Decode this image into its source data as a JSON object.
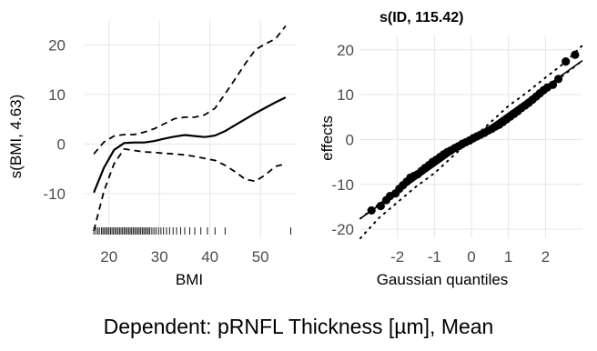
{
  "caption": "Dependent: pRNFL Thickness [µm], Mean",
  "chart_data": [
    {
      "type": "line",
      "title": "",
      "xlabel": "BMI",
      "ylabel": "s(BMI, 4.63)",
      "xlim": [
        15,
        57
      ],
      "ylim": [
        -19,
        25
      ],
      "xticks": [
        20,
        30,
        40,
        50
      ],
      "yticks": [
        -10,
        0,
        10,
        20
      ],
      "grid": true,
      "series": [
        {
          "name": "",
          "style": "solid",
          "x": [
            17,
            19,
            21,
            23,
            25,
            27,
            29,
            31,
            33,
            35,
            37,
            39,
            41,
            43,
            45,
            47,
            49,
            51,
            53,
            55
          ],
          "y": [
            -9.8,
            -4.8,
            -1.2,
            0.2,
            0.3,
            0.3,
            0.6,
            1.1,
            1.5,
            1.8,
            1.6,
            1.4,
            1.7,
            2.6,
            3.8,
            5.0,
            6.2,
            7.3,
            8.4,
            9.4
          ]
        },
        {
          "name": "",
          "style": "dashed",
          "x": [
            17,
            19,
            21,
            23,
            25,
            27,
            29,
            31,
            33,
            35,
            37,
            39,
            41,
            43,
            45,
            47,
            49,
            51,
            53,
            55
          ],
          "y": [
            -2.0,
            0.4,
            1.6,
            1.9,
            1.9,
            2.4,
            3.1,
            4.1,
            5.1,
            5.4,
            5.4,
            5.9,
            7.2,
            10.1,
            13.1,
            16.2,
            19.0,
            20.2,
            21.2,
            23.8
          ]
        },
        {
          "name": "",
          "style": "dashed",
          "x": [
            17,
            19,
            21,
            23,
            25,
            27,
            29,
            31,
            33,
            35,
            37,
            39,
            41,
            43,
            45,
            47,
            49,
            51,
            53,
            55
          ],
          "y": [
            -17.5,
            -9.5,
            -4.0,
            -1.0,
            -1.3,
            -1.6,
            -1.7,
            -1.9,
            -2.0,
            -2.2,
            -2.5,
            -2.9,
            -3.3,
            -4.3,
            -5.6,
            -7.1,
            -7.5,
            -6.2,
            -4.5,
            -4.0
          ]
        }
      ],
      "rug": [
        17.0,
        17.4,
        17.8,
        18.1,
        18.5,
        18.8,
        19.1,
        19.4,
        19.7,
        20.0,
        20.3,
        20.6,
        20.9,
        21.2,
        21.5,
        21.8,
        22.1,
        22.4,
        22.7,
        23.0,
        23.3,
        23.6,
        23.9,
        24.2,
        24.5,
        24.8,
        25.1,
        25.4,
        25.7,
        26.0,
        26.3,
        26.6,
        26.9,
        27.2,
        27.5,
        27.8,
        28.1,
        28.5,
        28.9,
        29.3,
        29.8,
        30.3,
        30.8,
        31.4,
        32.0,
        32.7,
        33.4,
        34.2,
        35.0,
        36.0,
        37.0,
        38.2,
        39.5,
        41.0,
        43.0,
        56.0
      ]
    },
    {
      "type": "scatter",
      "title": "s(ID, 115.42)",
      "xlabel": "Gaussian quantiles",
      "ylabel": "effects",
      "xlim": [
        -3.0,
        3.0
      ],
      "ylim": [
        -22,
        23
      ],
      "xticks": [
        -2,
        -1,
        0,
        1,
        2
      ],
      "yticks": [
        -20,
        -10,
        0,
        10,
        20
      ],
      "grid": true,
      "reference_line": {
        "x": [
          -3.0,
          3.0
        ],
        "y": [
          -17.6,
          17.6
        ]
      },
      "confidence_band": {
        "lower": {
          "x": [
            -3.0,
            -2.5,
            -2.0,
            -1.5,
            -1.0,
            -0.5,
            0.0,
            0.5,
            1.0,
            1.5,
            2.0,
            2.5,
            3.0
          ],
          "y": [
            -22.0,
            -17.5,
            -14.0,
            -10.5,
            -7.5,
            -3.7,
            0.0,
            2.7,
            5.5,
            8.4,
            11.6,
            14.4,
            17.6
          ]
        },
        "upper": {
          "x": [
            -3.0,
            -2.5,
            -2.0,
            -1.5,
            -1.0,
            -0.5,
            0.0,
            0.5,
            1.0,
            1.5,
            2.0,
            2.5,
            3.0
          ],
          "y": [
            -17.6,
            -14.4,
            -11.6,
            -8.4,
            -5.5,
            -2.7,
            0.0,
            3.7,
            7.5,
            10.5,
            13.8,
            17.0,
            21.0
          ]
        }
      },
      "points": {
        "x": [
          -2.7,
          -2.45,
          -2.3,
          -2.2,
          -2.05,
          -1.95,
          -1.85,
          -1.75,
          -1.65,
          -1.55,
          -1.45,
          -1.35,
          -1.25,
          -1.15,
          -1.05,
          -0.95,
          -0.85,
          -0.75,
          -0.65,
          -0.55,
          -0.45,
          -0.35,
          -0.25,
          -0.15,
          -0.05,
          0.05,
          0.15,
          0.25,
          0.35,
          0.45,
          0.55,
          0.65,
          0.75,
          0.85,
          0.95,
          1.05,
          1.15,
          1.25,
          1.35,
          1.45,
          1.55,
          1.65,
          1.75,
          1.85,
          1.95,
          2.05,
          2.2,
          2.35,
          2.55,
          2.8
        ],
        "y": [
          -15.8,
          -14.8,
          -13.5,
          -12.6,
          -12.0,
          -11.0,
          -10.2,
          -9.4,
          -8.5,
          -8.1,
          -7.7,
          -7.0,
          -6.3,
          -5.7,
          -5.0,
          -4.5,
          -3.9,
          -3.3,
          -2.8,
          -2.4,
          -1.9,
          -1.5,
          -1.0,
          -0.6,
          -0.2,
          0.3,
          0.7,
          1.1,
          1.5,
          2.0,
          2.4,
          2.9,
          3.3,
          3.9,
          4.5,
          5.1,
          5.7,
          6.3,
          7.0,
          7.6,
          8.2,
          8.9,
          9.6,
          10.3,
          11.0,
          11.6,
          12.2,
          13.5,
          17.4,
          18.9
        ]
      }
    }
  ]
}
